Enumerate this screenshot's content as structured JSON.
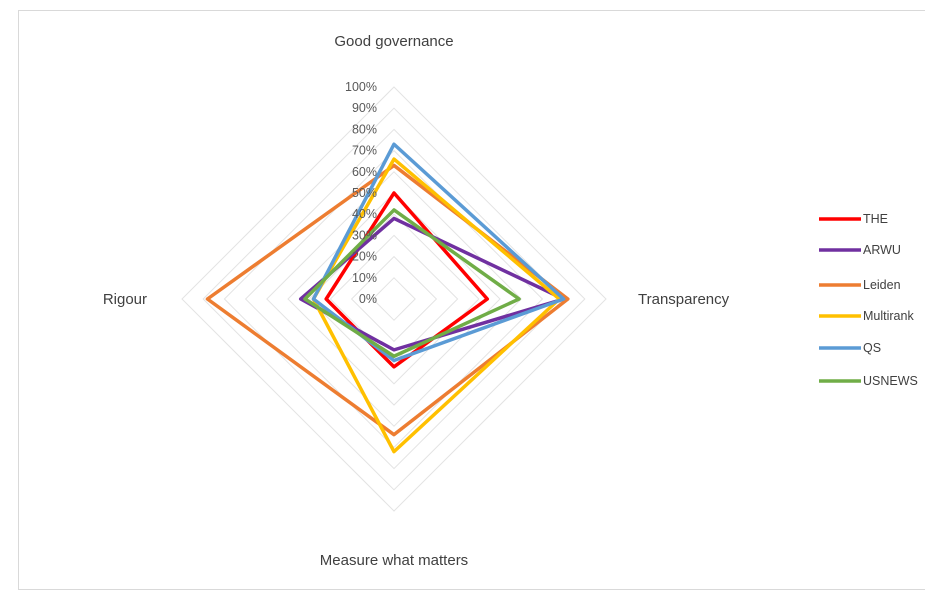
{
  "chart_data": {
    "type": "radar",
    "axes": [
      "Good governance",
      "Transparency",
      "Measure what matters",
      "Rigour"
    ],
    "ticks": [
      "0%",
      "10%",
      "20%",
      "30%",
      "40%",
      "50%",
      "60%",
      "70%",
      "80%",
      "90%",
      "100%"
    ],
    "rlim": [
      0,
      100
    ],
    "grid": true,
    "legend_position": "right",
    "series": [
      {
        "name": "THE",
        "color": "#ff0000",
        "values": [
          50,
          44,
          32,
          32
        ]
      },
      {
        "name": "ARWU",
        "color": "#7030a0",
        "values": [
          38,
          80,
          24,
          44
        ]
      },
      {
        "name": "Leiden",
        "color": "#ed7d31",
        "values": [
          63,
          82,
          64,
          88
        ]
      },
      {
        "name": "Multirank",
        "color": "#ffc000",
        "values": [
          66,
          78,
          72,
          38
        ]
      },
      {
        "name": "QS",
        "color": "#5b9bd5",
        "values": [
          73,
          80,
          29,
          38
        ]
      },
      {
        "name": "USNEWS",
        "color": "#70ad47",
        "values": [
          42,
          59,
          27,
          42
        ]
      }
    ]
  }
}
